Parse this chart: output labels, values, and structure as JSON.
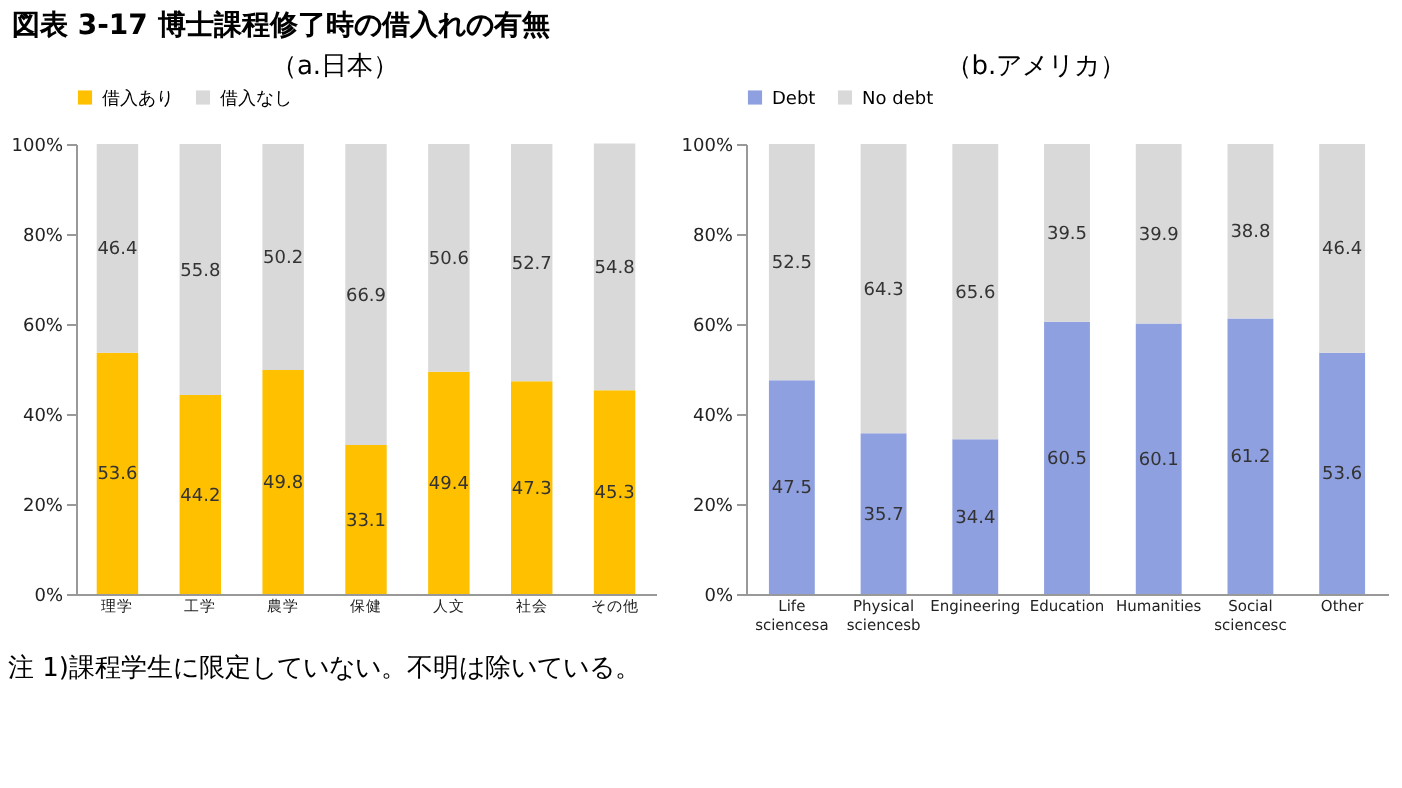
{
  "chart_data": [
    {
      "type": "bar",
      "title": "図表 3-17 博士課程修了時の借入れの有無",
      "subtitle": "（a.日本）",
      "stacked": true,
      "data_labels": true,
      "legend": "top",
      "grid": false,
      "categories": [
        "理学",
        "工学",
        "農学",
        "保健",
        "人文",
        "社会",
        "その他"
      ],
      "series": [
        {
          "name": "借入あり",
          "color": "#ffc000",
          "values": [
            53.6,
            44.2,
            49.8,
            33.1,
            49.4,
            47.3,
            45.3
          ]
        },
        {
          "name": "借入なし",
          "color": "#d9d9d9",
          "values": [
            46.4,
            55.8,
            50.2,
            66.9,
            50.6,
            52.7,
            54.8
          ]
        }
      ],
      "ylim": [
        0,
        100
      ],
      "yticks": [
        {
          "value": 0,
          "label": "0%"
        },
        {
          "value": 20,
          "label": "20%"
        },
        {
          "value": 40,
          "label": "40%"
        },
        {
          "value": 60,
          "label": "60%"
        },
        {
          "value": 80,
          "label": "80%"
        },
        {
          "value": 100,
          "label": "100%"
        }
      ],
      "annotations": [
        "注 1)課程学生に限定していない。不明は除いている。"
      ]
    },
    {
      "type": "bar",
      "subtitle": "（b.アメリカ）",
      "stacked": true,
      "data_labels": true,
      "legend": "top",
      "grid": false,
      "categories": [
        "Life sciencesa",
        "Physical sciencesb",
        "Engineering",
        "Education",
        "Humanities",
        "Social sciencesc",
        "Other"
      ],
      "series": [
        {
          "name": "Debt",
          "color": "#8fa0e0",
          "values": [
            47.5,
            35.7,
            34.4,
            60.5,
            60.1,
            61.2,
            53.6
          ]
        },
        {
          "name": "No debt",
          "color": "#d9d9d9",
          "values": [
            52.5,
            64.3,
            65.6,
            39.5,
            39.9,
            38.8,
            46.4
          ]
        }
      ],
      "ylim": [
        0,
        100
      ],
      "yticks": [
        {
          "value": 0,
          "label": "0%"
        },
        {
          "value": 20,
          "label": "20%"
        },
        {
          "value": 40,
          "label": "40%"
        },
        {
          "value": 60,
          "label": "60%"
        },
        {
          "value": 80,
          "label": "80%"
        },
        {
          "value": 100,
          "label": "100%"
        }
      ]
    }
  ]
}
